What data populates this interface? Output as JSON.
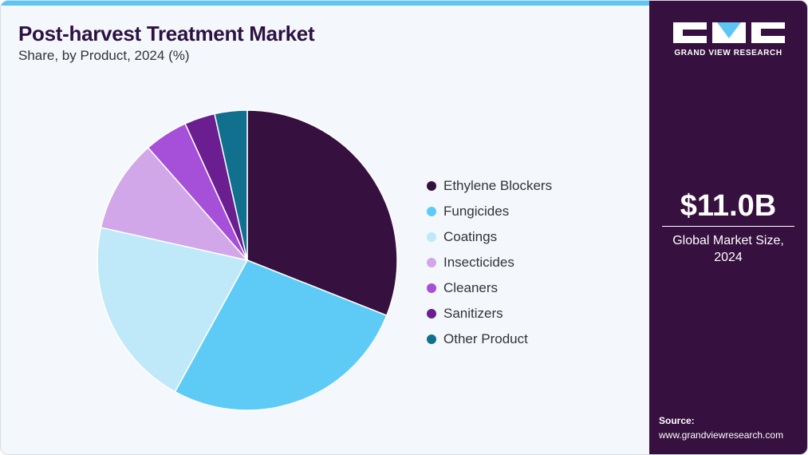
{
  "header": {
    "title": "Post-harvest Treatment Market",
    "subtitle": "Share, by Product, 2024 (%)"
  },
  "sidebar": {
    "brand": "GRAND VIEW RESEARCH",
    "market_value": "$11.0B",
    "market_label_line1": "Global Market Size,",
    "market_label_line2": "2024",
    "source_title": "Source:",
    "source_url": "www.grandviewresearch.com"
  },
  "colors": {
    "accent_bar": "#5ec5f2",
    "sidebar_bg": "#36103f"
  },
  "chart_data": {
    "type": "pie",
    "start_angle_deg": 0,
    "direction": "clockwise",
    "legend_position": "right",
    "slices": [
      {
        "label": "Ethylene Blockers",
        "value": 31.0,
        "color": "#36103f"
      },
      {
        "label": "Fungicides",
        "value": 27.0,
        "color": "#5ecbf6"
      },
      {
        "label": "Coatings",
        "value": 20.5,
        "color": "#bfe9f8"
      },
      {
        "label": "Insecticides",
        "value": 10.0,
        "color": "#d1a7ea"
      },
      {
        "label": "Cleaners",
        "value": 4.7,
        "color": "#a64fd9"
      },
      {
        "label": "Sanitizers",
        "value": 3.3,
        "color": "#6a1e90"
      },
      {
        "label": "Other Product",
        "value": 3.5,
        "color": "#12708f"
      }
    ]
  }
}
